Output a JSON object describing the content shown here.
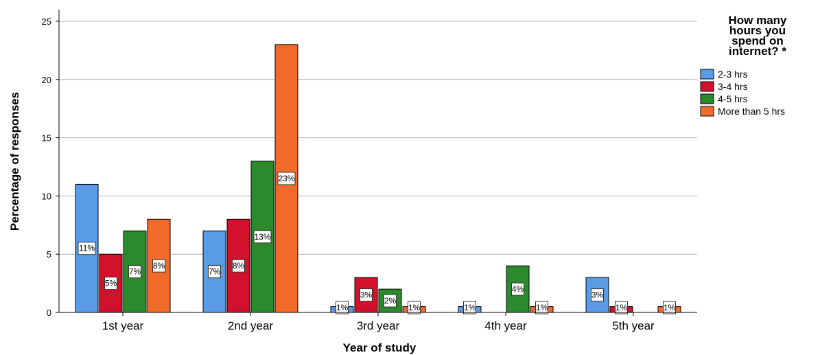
{
  "chart_data": {
    "type": "bar",
    "categories": [
      "1st year",
      "2nd year",
      "3rd year",
      "4th year",
      "5th year"
    ],
    "series": [
      {
        "name": "2-3 hrs",
        "color": "#5a9be6",
        "values": [
          11,
          7,
          0.5,
          0.5,
          3
        ],
        "labels": [
          "11%",
          "7%",
          "1%",
          "1%",
          "3%"
        ]
      },
      {
        "name": "3-4 hrs",
        "color": "#d2112d",
        "values": [
          5,
          8,
          3,
          null,
          0.5
        ],
        "labels": [
          "5%",
          "8%",
          "3%",
          "",
          "1%"
        ]
      },
      {
        "name": "4-5 hrs",
        "color": "#2b8a2b",
        "values": [
          7,
          13,
          2,
          4,
          null
        ],
        "labels": [
          "7%",
          "13%",
          "2%",
          "4%",
          ""
        ]
      },
      {
        "name": "More than 5 hrs",
        "color": "#f06a2a",
        "values": [
          8,
          23,
          0.5,
          0.5,
          0.5
        ],
        "labels": [
          "8%",
          "23%",
          "1%",
          "1%",
          "1%"
        ]
      }
    ],
    "ylabel": "Percentage of responses",
    "xlabel": "Year of study",
    "ylim": [
      0,
      26
    ],
    "yticks": [
      0,
      5,
      10,
      15,
      20,
      25
    ],
    "grid": true,
    "legend": {
      "title_lines": [
        "How many",
        "hours you",
        "spend on",
        "internet? *"
      ],
      "position": "top-right"
    }
  }
}
